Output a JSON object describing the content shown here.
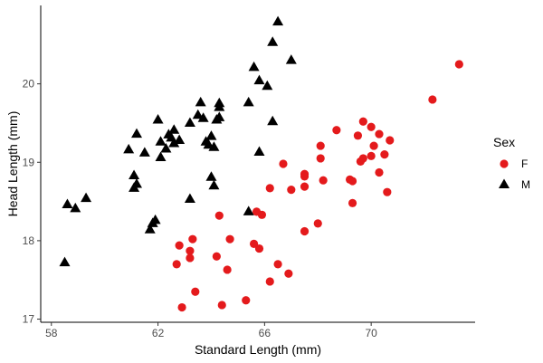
{
  "chart_data": {
    "type": "scatter",
    "xlabel": "Standard Length (mm)",
    "ylabel": "Head Length (mm)",
    "xlim": [
      57.6,
      73.9
    ],
    "ylim": [
      16.96,
      21.0
    ],
    "xticks": [
      58,
      62,
      66,
      70
    ],
    "yticks": [
      17,
      18,
      19,
      20
    ],
    "grid": false,
    "legend": {
      "title": "Sex",
      "placement": "right"
    },
    "series": [
      {
        "name": "F",
        "marker": "circle",
        "color": "#e41a1c",
        "points": [
          [
            62.7,
            17.7
          ],
          [
            62.8,
            17.94
          ],
          [
            62.9,
            17.15
          ],
          [
            63.2,
            17.78
          ],
          [
            63.2,
            17.87
          ],
          [
            63.3,
            18.02
          ],
          [
            63.4,
            17.35
          ],
          [
            64.2,
            17.8
          ],
          [
            64.3,
            18.32
          ],
          [
            64.4,
            17.18
          ],
          [
            64.6,
            17.63
          ],
          [
            64.7,
            18.02
          ],
          [
            65.3,
            17.24
          ],
          [
            65.6,
            17.96
          ],
          [
            65.8,
            17.9
          ],
          [
            65.7,
            18.37
          ],
          [
            65.9,
            18.33
          ],
          [
            66.2,
            18.67
          ],
          [
            66.2,
            17.48
          ],
          [
            66.5,
            17.7
          ],
          [
            66.7,
            18.98
          ],
          [
            67.0,
            18.65
          ],
          [
            66.9,
            17.58
          ],
          [
            67.5,
            18.85
          ],
          [
            67.5,
            18.82
          ],
          [
            67.5,
            18.69
          ],
          [
            67.5,
            18.12
          ],
          [
            68.0,
            18.22
          ],
          [
            68.1,
            19.05
          ],
          [
            68.1,
            19.21
          ],
          [
            68.2,
            18.77
          ],
          [
            68.7,
            19.41
          ],
          [
            69.2,
            18.78
          ],
          [
            69.3,
            18.48
          ],
          [
            69.3,
            18.76
          ],
          [
            69.5,
            19.34
          ],
          [
            69.6,
            19.01
          ],
          [
            69.7,
            19.52
          ],
          [
            69.7,
            19.05
          ],
          [
            70.0,
            19.45
          ],
          [
            70.0,
            19.08
          ],
          [
            70.1,
            19.21
          ],
          [
            70.3,
            19.36
          ],
          [
            70.3,
            18.87
          ],
          [
            70.5,
            19.1
          ],
          [
            70.7,
            19.28
          ],
          [
            70.6,
            18.62
          ],
          [
            72.3,
            19.8
          ],
          [
            73.3,
            20.25
          ]
        ]
      },
      {
        "name": "M",
        "marker": "triangle",
        "color": "#000000",
        "points": [
          [
            58.5,
            17.72
          ],
          [
            58.6,
            18.46
          ],
          [
            58.9,
            18.41
          ],
          [
            59.3,
            18.54
          ],
          [
            60.9,
            19.16
          ],
          [
            61.1,
            18.83
          ],
          [
            61.1,
            18.67
          ],
          [
            61.2,
            19.36
          ],
          [
            61.2,
            18.72
          ],
          [
            61.5,
            19.12
          ],
          [
            61.7,
            18.14
          ],
          [
            61.8,
            18.22
          ],
          [
            61.9,
            18.26
          ],
          [
            62.0,
            19.54
          ],
          [
            62.1,
            19.26
          ],
          [
            62.1,
            19.06
          ],
          [
            62.3,
            19.17
          ],
          [
            62.4,
            19.35
          ],
          [
            62.5,
            19.31
          ],
          [
            62.6,
            19.24
          ],
          [
            62.6,
            19.41
          ],
          [
            62.8,
            19.28
          ],
          [
            63.2,
            18.53
          ],
          [
            63.2,
            19.5
          ],
          [
            63.5,
            19.6
          ],
          [
            63.6,
            19.76
          ],
          [
            63.7,
            19.56
          ],
          [
            63.8,
            19.26
          ],
          [
            63.9,
            19.22
          ],
          [
            64.0,
            19.33
          ],
          [
            64.0,
            18.81
          ],
          [
            64.1,
            18.7
          ],
          [
            64.1,
            19.19
          ],
          [
            64.2,
            19.54
          ],
          [
            64.3,
            19.7
          ],
          [
            64.3,
            19.57
          ],
          [
            64.3,
            19.75
          ],
          [
            65.4,
            18.37
          ],
          [
            65.4,
            19.76
          ],
          [
            65.6,
            20.21
          ],
          [
            65.8,
            20.04
          ],
          [
            65.8,
            19.13
          ],
          [
            66.1,
            19.97
          ],
          [
            66.3,
            19.52
          ],
          [
            66.3,
            20.53
          ],
          [
            66.5,
            20.79
          ],
          [
            67.0,
            20.3
          ]
        ]
      }
    ]
  }
}
